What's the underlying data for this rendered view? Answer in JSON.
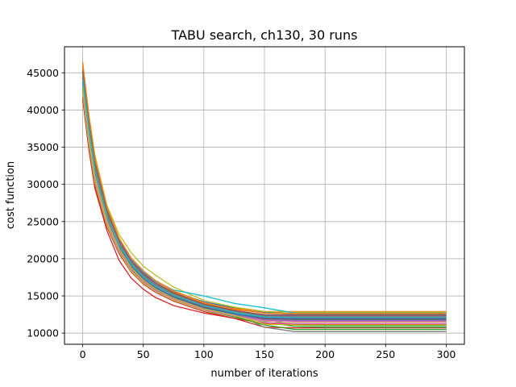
{
  "chart_data": {
    "type": "line",
    "title": "TABU search, ch130, 30 runs",
    "xlabel": "number of iterations",
    "ylabel": "cost function",
    "xlim": [
      -15,
      315
    ],
    "ylim": [
      8500,
      48500
    ],
    "xticks": [
      0,
      50,
      100,
      150,
      200,
      250,
      300
    ],
    "yticks": [
      10000,
      15000,
      20000,
      25000,
      30000,
      35000,
      40000,
      45000
    ],
    "grid": true,
    "colors": [
      "#1f77b4",
      "#ff7f0e",
      "#2ca02c",
      "#d62728",
      "#9467bd",
      "#8c564b",
      "#e377c2",
      "#7f7f7f",
      "#bcbd22",
      "#17becf"
    ],
    "series": [
      {
        "x": [
          0,
          5,
          10,
          20,
          30,
          40,
          50,
          60,
          75,
          100,
          125,
          150,
          175,
          200,
          250,
          300
        ],
        "values": [
          44500,
          37800,
          32500,
          26200,
          22300,
          19700,
          18000,
          16800,
          15600,
          14200,
          13400,
          12800,
          12600,
          12600,
          12600,
          12600
        ]
      },
      {
        "x": [
          0,
          5,
          10,
          20,
          30,
          40,
          50,
          60,
          75,
          100,
          125,
          150,
          175,
          200,
          250,
          300
        ],
        "values": [
          46500,
          39500,
          34000,
          27000,
          22800,
          20000,
          18200,
          16900,
          15500,
          14000,
          13300,
          12900,
          12900,
          12900,
          12900,
          12900
        ]
      },
      {
        "x": [
          0,
          5,
          10,
          20,
          30,
          40,
          50,
          60,
          75,
          100,
          125,
          150,
          175,
          200,
          250,
          300
        ],
        "values": [
          43000,
          36500,
          31200,
          25300,
          21600,
          19000,
          17300,
          16100,
          14800,
          13300,
          12300,
          11800,
          11100,
          11000,
          11000,
          11000
        ]
      },
      {
        "x": [
          0,
          5,
          10,
          20,
          30,
          40,
          50,
          60,
          75,
          100,
          125,
          150,
          175,
          200,
          250,
          300
        ],
        "values": [
          41500,
          34800,
          29500,
          23800,
          19800,
          17400,
          15900,
          14800,
          13700,
          12700,
          12000,
          10800,
          10700,
          10700,
          10700,
          10700
        ]
      },
      {
        "x": [
          0,
          5,
          10,
          20,
          30,
          40,
          50,
          60,
          75,
          100,
          125,
          150,
          175,
          200,
          250,
          300
        ],
        "values": [
          45200,
          38300,
          32800,
          26400,
          22200,
          19500,
          17800,
          16500,
          15200,
          13800,
          13000,
          12500,
          12400,
          12400,
          12400,
          12400
        ]
      },
      {
        "x": [
          0,
          5,
          10,
          20,
          30,
          40,
          50,
          60,
          75,
          100,
          125,
          150,
          175,
          200,
          250,
          300
        ],
        "values": [
          42800,
          36100,
          30900,
          24900,
          21200,
          18600,
          17000,
          15800,
          14600,
          13200,
          12400,
          11700,
          11600,
          11600,
          11600,
          11600
        ]
      },
      {
        "x": [
          0,
          5,
          10,
          20,
          30,
          40,
          50,
          60,
          75,
          100,
          125,
          150,
          175,
          200,
          250,
          300
        ],
        "values": [
          44000,
          37200,
          31800,
          25600,
          21800,
          19200,
          17500,
          16300,
          15000,
          13600,
          12800,
          12200,
          12100,
          12100,
          12100,
          12100
        ]
      },
      {
        "x": [
          0,
          5,
          10,
          20,
          30,
          40,
          50,
          60,
          75,
          100,
          125,
          150,
          175,
          200,
          250,
          300
        ],
        "values": [
          43500,
          36800,
          31500,
          25400,
          21700,
          19100,
          17400,
          16200,
          14900,
          13500,
          12700,
          10800,
          10200,
          10200,
          10200,
          10200
        ]
      },
      {
        "x": [
          0,
          5,
          10,
          20,
          30,
          40,
          50,
          60,
          75,
          100,
          125,
          150,
          175,
          200,
          250,
          300
        ],
        "values": [
          46000,
          39200,
          34000,
          27200,
          23300,
          20800,
          19000,
          17800,
          16200,
          14400,
          13500,
          12900,
          12800,
          12800,
          12800,
          12800
        ]
      },
      {
        "x": [
          0,
          5,
          10,
          20,
          30,
          40,
          50,
          60,
          75,
          100,
          125,
          150,
          175,
          200,
          250,
          300
        ],
        "values": [
          45800,
          38800,
          33400,
          26800,
          22700,
          20000,
          18300,
          17000,
          15800,
          15000,
          14000,
          13400,
          12700,
          12700,
          12700,
          12700
        ]
      },
      {
        "x": [
          0,
          5,
          10,
          20,
          30,
          40,
          50,
          60,
          75,
          100,
          125,
          150,
          175,
          200,
          250,
          300
        ],
        "values": [
          43800,
          37000,
          31600,
          25500,
          21800,
          19200,
          17600,
          16400,
          15100,
          13700,
          12900,
          12300,
          12200,
          12200,
          12200,
          12200
        ]
      },
      {
        "x": [
          0,
          5,
          10,
          20,
          30,
          40,
          50,
          60,
          75,
          100,
          125,
          150,
          175,
          200,
          250,
          300
        ],
        "values": [
          44800,
          37900,
          32500,
          26100,
          22100,
          19400,
          17700,
          16500,
          15100,
          13600,
          12700,
          12100,
          12000,
          12000,
          12000,
          12000
        ]
      },
      {
        "x": [
          0,
          5,
          10,
          20,
          30,
          40,
          50,
          60,
          75,
          100,
          125,
          150,
          175,
          200,
          250,
          300
        ],
        "values": [
          42500,
          35800,
          30600,
          24700,
          21000,
          18400,
          16800,
          15700,
          14500,
          13200,
          12300,
          11500,
          10900,
          10800,
          10800,
          10800
        ]
      },
      {
        "x": [
          0,
          5,
          10,
          20,
          30,
          40,
          50,
          60,
          75,
          100,
          125,
          150,
          175,
          200,
          250,
          300
        ],
        "values": [
          41800,
          35200,
          30000,
          24300,
          20700,
          18200,
          16600,
          15500,
          14300,
          12900,
          12000,
          11300,
          11200,
          11200,
          11200,
          11200
        ]
      },
      {
        "x": [
          0,
          5,
          10,
          20,
          30,
          40,
          50,
          60,
          75,
          100,
          125,
          150,
          175,
          200,
          250,
          300
        ],
        "values": [
          45500,
          38600,
          33200,
          26700,
          22600,
          19800,
          18100,
          16800,
          15400,
          13900,
          13100,
          12400,
          12300,
          12300,
          12300,
          12300
        ]
      },
      {
        "x": [
          0,
          5,
          10,
          20,
          30,
          40,
          50,
          60,
          75,
          100,
          125,
          150,
          175,
          200,
          250,
          300
        ],
        "values": [
          44200,
          37400,
          32100,
          25800,
          21900,
          19300,
          17600,
          16400,
          15000,
          13500,
          12600,
          11900,
          11800,
          11800,
          11800,
          11800
        ]
      },
      {
        "x": [
          0,
          5,
          10,
          20,
          30,
          40,
          50,
          60,
          75,
          100,
          125,
          150,
          175,
          200,
          250,
          300
        ],
        "values": [
          43200,
          36500,
          31300,
          25200,
          21400,
          18900,
          17200,
          16000,
          14700,
          13300,
          12500,
          11400,
          11300,
          11300,
          11300,
          11300
        ]
      },
      {
        "x": [
          0,
          5,
          10,
          20,
          30,
          40,
          50,
          60,
          75,
          100,
          125,
          150,
          175,
          200,
          250,
          300
        ],
        "values": [
          45000,
          38100,
          32700,
          26300,
          22300,
          19600,
          17900,
          16700,
          15300,
          13800,
          12900,
          12500,
          12500,
          12500,
          12500,
          12500
        ]
      },
      {
        "x": [
          0,
          5,
          10,
          20,
          30,
          40,
          50,
          60,
          75,
          100,
          125,
          150,
          175,
          200,
          250,
          300
        ],
        "values": [
          42200,
          35500,
          30300,
          24500,
          20900,
          18300,
          16700,
          15600,
          14400,
          13000,
          12200,
          11600,
          11500,
          11500,
          11500,
          11500
        ]
      },
      {
        "x": [
          0,
          5,
          10,
          20,
          30,
          40,
          50,
          60,
          75,
          100,
          125,
          150,
          175,
          200,
          250,
          300
        ],
        "values": [
          44600,
          37700,
          32300,
          26000,
          22000,
          19400,
          17700,
          16500,
          15200,
          13700,
          12800,
          12200,
          12150,
          12150,
          12150,
          12150
        ]
      },
      {
        "x": [
          0,
          5,
          10,
          20,
          30,
          40,
          50,
          60,
          75,
          100,
          125,
          150,
          175,
          200,
          250,
          300
        ],
        "values": [
          43700,
          36900,
          31600,
          25400,
          21600,
          19000,
          17300,
          16100,
          14800,
          13400,
          12600,
          12000,
          11900,
          11900,
          11900,
          11900
        ]
      },
      {
        "x": [
          0,
          5,
          10,
          20,
          30,
          40,
          50,
          60,
          75,
          100,
          125,
          150,
          175,
          200,
          250,
          300
        ],
        "values": [
          46200,
          39000,
          33500,
          26900,
          22800,
          20100,
          18400,
          17100,
          15700,
          14100,
          13200,
          12700,
          12650,
          12650,
          12650,
          12650
        ]
      },
      {
        "x": [
          0,
          5,
          10,
          20,
          30,
          40,
          50,
          60,
          75,
          100,
          125,
          150,
          175,
          200,
          250,
          300
        ],
        "values": [
          42900,
          36200,
          31000,
          25000,
          21300,
          18700,
          17100,
          15900,
          14600,
          13100,
          12200,
          11100,
          10500,
          10500,
          10500,
          10500
        ]
      },
      {
        "x": [
          0,
          5,
          10,
          20,
          30,
          40,
          50,
          60,
          75,
          100,
          125,
          150,
          175,
          200,
          250,
          300
        ],
        "values": [
          44300,
          37500,
          32200,
          25900,
          22000,
          19300,
          17600,
          16400,
          15000,
          13600,
          12750,
          12100,
          12050,
          12050,
          12050,
          12050
        ]
      },
      {
        "x": [
          0,
          5,
          10,
          20,
          30,
          40,
          50,
          60,
          75,
          100,
          125,
          150,
          175,
          200,
          250,
          300
        ],
        "values": [
          43400,
          36700,
          31400,
          25300,
          21500,
          18900,
          17200,
          16000,
          14700,
          13300,
          12450,
          11800,
          11700,
          11700,
          11700,
          11700
        ]
      },
      {
        "x": [
          0,
          5,
          10,
          20,
          30,
          40,
          50,
          60,
          75,
          100,
          125,
          150,
          175,
          200,
          250,
          300
        ],
        "values": [
          45300,
          38400,
          33000,
          26500,
          22400,
          19700,
          18000,
          16700,
          15400,
          13900,
          13050,
          12450,
          12400,
          12400,
          12400,
          12400
        ]
      },
      {
        "x": [
          0,
          5,
          10,
          20,
          30,
          40,
          50,
          60,
          75,
          100,
          125,
          150,
          175,
          200,
          250,
          300
        ],
        "values": [
          42600,
          35900,
          30700,
          24800,
          21100,
          18500,
          16900,
          15700,
          14500,
          13100,
          12300,
          11650,
          11550,
          11550,
          11550,
          11550
        ]
      },
      {
        "x": [
          0,
          5,
          10,
          20,
          30,
          40,
          50,
          60,
          75,
          100,
          125,
          150,
          175,
          200,
          250,
          300
        ],
        "values": [
          44900,
          38000,
          32600,
          26200,
          22200,
          19500,
          17800,
          16600,
          15200,
          13750,
          12850,
          12250,
          12200,
          12200,
          12200,
          12200
        ]
      },
      {
        "x": [
          0,
          5,
          10,
          20,
          30,
          40,
          50,
          60,
          75,
          100,
          125,
          150,
          175,
          200,
          250,
          300
        ],
        "values": [
          43100,
          36400,
          31100,
          25100,
          21400,
          18800,
          17100,
          15900,
          14650,
          13250,
          12400,
          11200,
          11100,
          11100,
          11100,
          11100
        ]
      },
      {
        "x": [
          0,
          5,
          10,
          20,
          30,
          40,
          50,
          60,
          75,
          100,
          125,
          150,
          175,
          200,
          250,
          300
        ],
        "values": [
          44100,
          37300,
          31900,
          25700,
          21900,
          19250,
          17550,
          16350,
          15050,
          13650,
          12750,
          12150,
          12100,
          12100,
          12100,
          12100
        ]
      }
    ]
  }
}
